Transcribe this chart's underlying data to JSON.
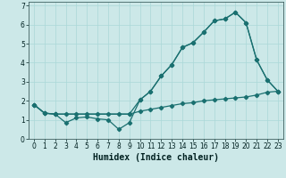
{
  "xlabel": "Humidex (Indice chaleur)",
  "bg_color": "#cce8e8",
  "line_color": "#1a7070",
  "grid_color": "#aad8d8",
  "xlim": [
    -0.5,
    23.5
  ],
  "ylim": [
    0,
    7.2
  ],
  "xticks": [
    0,
    1,
    2,
    3,
    4,
    5,
    6,
    7,
    8,
    9,
    10,
    11,
    12,
    13,
    14,
    15,
    16,
    17,
    18,
    19,
    20,
    21,
    22,
    23
  ],
  "yticks": [
    0,
    1,
    2,
    3,
    4,
    5,
    6,
    7
  ],
  "line1_x": [
    0,
    1,
    2,
    3,
    4,
    5,
    6,
    7,
    8,
    9,
    10,
    11,
    12,
    13,
    14,
    15,
    16,
    17,
    18,
    19,
    20,
    21,
    22,
    23
  ],
  "line1_y": [
    1.8,
    1.35,
    1.3,
    1.3,
    1.3,
    1.3,
    1.3,
    1.3,
    1.3,
    1.3,
    1.45,
    1.55,
    1.65,
    1.75,
    1.85,
    1.9,
    2.0,
    2.05,
    2.1,
    2.15,
    2.2,
    2.3,
    2.45,
    2.5
  ],
  "line2_x": [
    0,
    1,
    2,
    9,
    10,
    11,
    12,
    13,
    14,
    15,
    16,
    17,
    18,
    19,
    20,
    21,
    22,
    23
  ],
  "line2_y": [
    1.8,
    1.35,
    1.3,
    1.3,
    2.05,
    2.5,
    3.3,
    3.9,
    4.8,
    5.05,
    5.6,
    6.2,
    6.3,
    6.65,
    6.1,
    4.15,
    3.1,
    2.5
  ],
  "line3_x": [
    0,
    1,
    2,
    3,
    4,
    5,
    6,
    7,
    8,
    9,
    10,
    11,
    12,
    13,
    14,
    15,
    16,
    17,
    18,
    19,
    20,
    21,
    22,
    23
  ],
  "line3_y": [
    1.8,
    1.35,
    1.3,
    0.85,
    1.1,
    1.15,
    1.05,
    1.0,
    0.5,
    0.85,
    2.05,
    2.5,
    3.3,
    3.9,
    4.8,
    5.05,
    5.6,
    6.2,
    6.3,
    6.65,
    6.1,
    4.15,
    3.1,
    2.5
  ]
}
